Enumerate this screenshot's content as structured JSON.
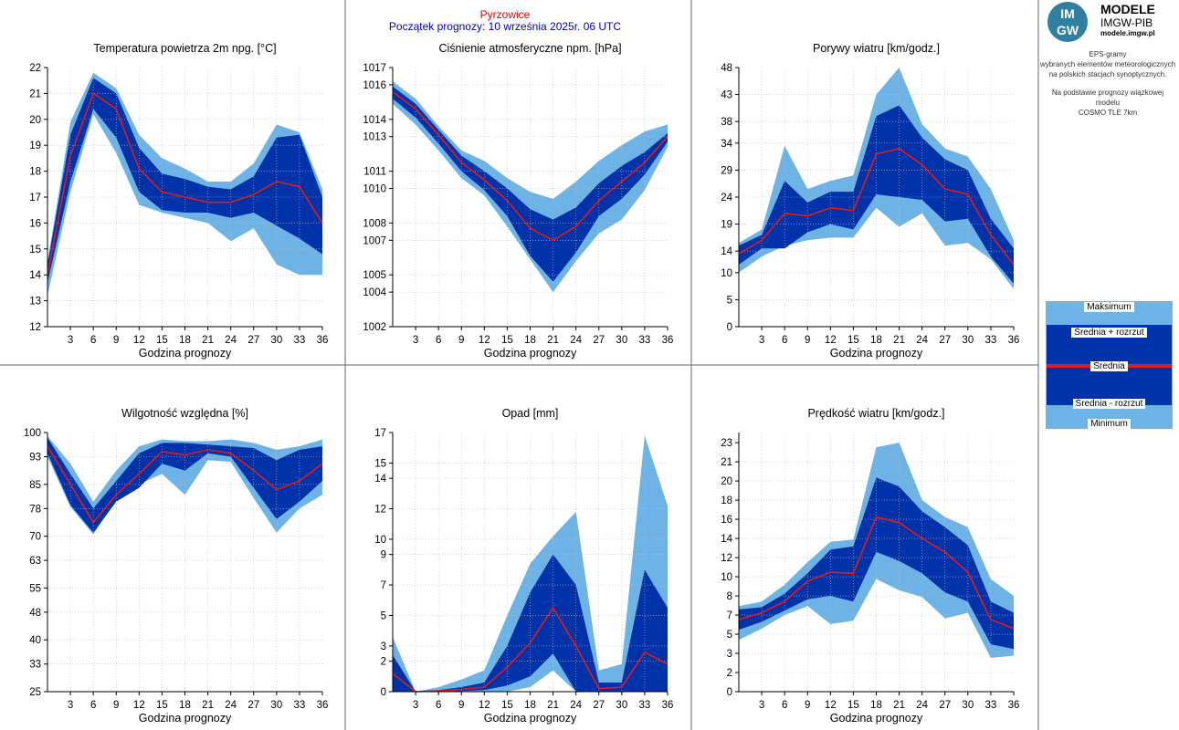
{
  "header": {
    "station": "Pyrzowice",
    "forecast_start": "Początek prognozy: 10 września 2025r. 06 UTC",
    "station_color": "#e00000",
    "forecast_color": "#0000c0"
  },
  "logo": {
    "mark_top": "IM",
    "mark_bottom": "GW",
    "brand": "MODELE",
    "org": "IMGW-PIB",
    "url": "modele.imgw.pl"
  },
  "side_info": {
    "line1": "EPS-gramy",
    "line2": "wybranych elementów meteorologicznych",
    "line3": "na polskich stacjach  synoptycznych.",
    "line4": "Na podstawie prognozy wiązkowej modelu",
    "line5": "COSMO TLE 7km"
  },
  "legend": {
    "max": "Maksimum",
    "mean_plus": "Średnia + rozrzut",
    "mean": "Średnia",
    "mean_minus": "Średnia - rozrzut",
    "min": "Minimum"
  },
  "colors": {
    "minmax": "#6eb3e6",
    "spread": "#0033aa",
    "mean": "#e41a1c",
    "grid": "#bbbbbb"
  },
  "chart_data": [
    {
      "type": "area",
      "title": "Temperatura powietrza 2m npg. [°C]",
      "xlabel": "Godzina prognozy",
      "ylabel": "",
      "xlim": [
        0,
        36
      ],
      "ylim": [
        12,
        22
      ],
      "yticks": [
        "12",
        "13",
        "14",
        "15",
        "16",
        "17",
        "18",
        "19",
        "20",
        "21",
        "22"
      ],
      "x": [
        0,
        3,
        6,
        9,
        12,
        15,
        18,
        21,
        24,
        27,
        30,
        33,
        36
      ],
      "max": [
        14.5,
        19.9,
        21.8,
        21.2,
        19.4,
        18.5,
        18.1,
        17.6,
        17.6,
        18.3,
        19.8,
        19.5,
        17.3
      ],
      "mean_plus": [
        14.4,
        19.4,
        21.6,
        21.0,
        18.9,
        17.9,
        17.7,
        17.4,
        17.3,
        17.8,
        19.3,
        19.4,
        17.0
      ],
      "mean": [
        14.0,
        18.6,
        21.0,
        20.4,
        18.1,
        17.2,
        17.0,
        16.8,
        16.8,
        17.1,
        17.6,
        17.4,
        16.0
      ],
      "mean_minus": [
        13.7,
        17.6,
        20.4,
        19.3,
        17.2,
        16.5,
        16.4,
        16.4,
        16.2,
        16.4,
        15.9,
        15.4,
        14.8
      ],
      "min": [
        13.2,
        17.2,
        20.2,
        18.7,
        16.7,
        16.4,
        16.2,
        16.0,
        15.3,
        15.8,
        14.4,
        14.0,
        14.0
      ]
    },
    {
      "type": "area",
      "title": "Ciśnienie atmosferyczne npm. [hPa]",
      "xlabel": "Godzina prognozy",
      "ylabel": "",
      "xlim": [
        0,
        36
      ],
      "ylim": [
        1002,
        1017
      ],
      "yticks": [
        "1002",
        "1004",
        "1005",
        "1007",
        "1008",
        "1010",
        "1011",
        "1013",
        "1014",
        "1016",
        "1017"
      ],
      "x": [
        0,
        3,
        6,
        9,
        12,
        15,
        18,
        21,
        24,
        27,
        30,
        33,
        36
      ],
      "max": [
        1016.2,
        1015.2,
        1013.6,
        1012.2,
        1011.6,
        1010.6,
        1009.8,
        1009.4,
        1010.4,
        1011.6,
        1012.5,
        1013.3,
        1013.7
      ],
      "mean_plus": [
        1015.9,
        1014.9,
        1013.4,
        1011.9,
        1011.0,
        1010.0,
        1008.8,
        1008.2,
        1008.9,
        1010.3,
        1011.3,
        1012.1,
        1013.2
      ],
      "mean": [
        1015.6,
        1014.6,
        1013.1,
        1011.5,
        1010.5,
        1009.3,
        1007.7,
        1007.0,
        1007.8,
        1009.3,
        1010.4,
        1011.5,
        1013.0
      ],
      "mean_minus": [
        1015.2,
        1014.1,
        1012.6,
        1011.0,
        1009.9,
        1008.4,
        1006.1,
        1004.6,
        1006.3,
        1008.4,
        1009.4,
        1010.8,
        1012.7
      ],
      "min": [
        1014.9,
        1013.7,
        1012.2,
        1010.6,
        1009.6,
        1007.8,
        1005.9,
        1004.0,
        1005.8,
        1007.4,
        1008.2,
        1009.9,
        1012.4
      ]
    },
    {
      "type": "area",
      "title": "Porywy wiatru [km/godz.]",
      "xlabel": "Godzina prognozy",
      "ylabel": "",
      "xlim": [
        0,
        36
      ],
      "ylim": [
        0,
        48
      ],
      "yticks": [
        "0",
        "5",
        "10",
        "14",
        "19",
        "24",
        "29",
        "34",
        "38",
        "43",
        "48"
      ],
      "x": [
        0,
        3,
        6,
        9,
        12,
        15,
        18,
        21,
        24,
        27,
        30,
        33,
        36
      ],
      "max": [
        15.5,
        18.0,
        33.5,
        25.5,
        27.0,
        28.0,
        43.0,
        48.0,
        37.5,
        33.0,
        31.5,
        25.5,
        16.0
      ],
      "mean_plus": [
        15.0,
        17.0,
        27.0,
        23.0,
        25.0,
        25.0,
        39.0,
        41.0,
        35.0,
        31.0,
        29.0,
        20.0,
        14.5
      ],
      "mean": [
        13.5,
        16.0,
        21.0,
        20.5,
        22.0,
        21.5,
        32.0,
        33.0,
        30.0,
        25.5,
        24.5,
        17.0,
        11.5
      ],
      "mean_minus": [
        11.5,
        14.5,
        14.5,
        17.5,
        19.0,
        18.0,
        24.5,
        24.0,
        23.5,
        19.5,
        20.0,
        13.0,
        8.0
      ],
      "min": [
        10.0,
        13.0,
        15.0,
        16.0,
        16.5,
        16.5,
        22.0,
        18.5,
        21.0,
        15.0,
        15.5,
        12.5,
        7.0
      ]
    },
    {
      "type": "area",
      "title": "Wilgotność względna [%]",
      "xlabel": "Godzina prognozy",
      "ylabel": "",
      "xlim": [
        0,
        36
      ],
      "ylim": [
        25,
        100
      ],
      "yticks": [
        "25",
        "33",
        "40",
        "48",
        "55",
        "63",
        "70",
        "78",
        "85",
        "93",
        "100"
      ],
      "x": [
        0,
        3,
        6,
        9,
        12,
        15,
        18,
        21,
        24,
        27,
        30,
        33,
        36
      ],
      "max": [
        99.0,
        91.0,
        80.0,
        89.0,
        96.0,
        98.0,
        97.5,
        97.5,
        98.0,
        97.0,
        95.0,
        96.0,
        98.0
      ],
      "mean_plus": [
        98.5,
        88.0,
        78.0,
        86.0,
        94.0,
        97.0,
        97.0,
        96.5,
        96.0,
        95.5,
        92.0,
        95.0,
        96.0
      ],
      "mean": [
        96.0,
        85.0,
        74.0,
        82.0,
        88.0,
        94.5,
        93.5,
        95.0,
        94.0,
        89.0,
        83.5,
        86.0,
        91.0
      ],
      "mean_minus": [
        94.0,
        79.0,
        71.0,
        80.0,
        84.0,
        91.0,
        89.0,
        94.0,
        93.0,
        84.0,
        75.0,
        80.0,
        86.0
      ],
      "min": [
        93.0,
        78.5,
        70.5,
        81.0,
        85.0,
        88.0,
        82.0,
        92.0,
        91.5,
        81.0,
        71.0,
        78.0,
        82.0
      ]
    },
    {
      "type": "area",
      "title": "Opad [mm]",
      "xlabel": "Godzina prognozy",
      "ylabel": "",
      "xlim": [
        0,
        36
      ],
      "ylim": [
        0,
        17
      ],
      "yticks": [
        "0",
        "2",
        "3",
        "5",
        "7",
        "9",
        "10",
        "12",
        "14",
        "15",
        "17"
      ],
      "x": [
        0,
        3,
        6,
        9,
        12,
        15,
        18,
        21,
        24,
        27,
        30,
        33,
        36
      ],
      "max": [
        3.6,
        0.0,
        0.3,
        0.8,
        1.4,
        5.0,
        8.4,
        10.2,
        11.8,
        1.4,
        1.8,
        16.8,
        12.2
      ],
      "mean_plus": [
        2.4,
        0.0,
        0.1,
        0.3,
        0.6,
        3.0,
        6.5,
        9.0,
        7.0,
        0.6,
        0.6,
        8.0,
        5.5
      ],
      "mean": [
        1.2,
        0.0,
        0.05,
        0.15,
        0.3,
        1.6,
        3.2,
        5.5,
        3.0,
        0.2,
        0.3,
        2.6,
        1.8
      ],
      "mean_minus": [
        0.0,
        0.0,
        0.0,
        0.05,
        0.1,
        0.4,
        1.0,
        2.5,
        0.0,
        0.0,
        0.0,
        0.0,
        0.0
      ],
      "min": [
        0.0,
        0.0,
        0.0,
        0.0,
        0.0,
        0.0,
        0.3,
        1.4,
        0.0,
        0.0,
        0.0,
        0.0,
        0.0
      ]
    },
    {
      "type": "area",
      "title": "Prędkość wiatru [km/godz.]",
      "xlabel": "Godzina prognozy",
      "ylabel": "",
      "xlim": [
        0,
        36
      ],
      "ylim": [
        0,
        23
      ],
      "yticks": [
        "0",
        "2",
        "3",
        "5",
        "7",
        "8",
        "10",
        "12",
        "14",
        "16",
        "18",
        "20",
        "21",
        "23"
      ],
      "ytick_values": [
        0,
        1.7,
        3.4,
        5.1,
        6.8,
        8.5,
        10.2,
        11.9,
        13.6,
        15.3,
        17.0,
        18.7,
        20.4,
        22.1
      ],
      "x": [
        0,
        3,
        6,
        9,
        12,
        15,
        18,
        21,
        24,
        27,
        30,
        33,
        36
      ],
      "max": [
        7.6,
        8.0,
        9.5,
        11.5,
        13.3,
        13.5,
        21.7,
        22.1,
        17.0,
        15.5,
        14.6,
        10.0,
        8.5
      ],
      "mean_plus": [
        7.3,
        7.5,
        8.7,
        10.5,
        12.6,
        12.9,
        19.0,
        18.2,
        16.0,
        14.6,
        13.0,
        8.0,
        7.0
      ],
      "mean": [
        6.4,
        7.0,
        8.0,
        9.8,
        10.6,
        10.5,
        15.5,
        15.0,
        13.6,
        12.4,
        10.6,
        6.4,
        5.6
      ],
      "mean_minus": [
        5.5,
        6.2,
        7.2,
        8.2,
        8.5,
        8.0,
        12.4,
        11.6,
        10.5,
        8.8,
        8.0,
        4.2,
        3.8
      ],
      "min": [
        4.6,
        5.6,
        6.8,
        7.6,
        6.0,
        6.3,
        10.0,
        9.0,
        8.4,
        6.5,
        7.0,
        3.0,
        3.2
      ]
    }
  ]
}
